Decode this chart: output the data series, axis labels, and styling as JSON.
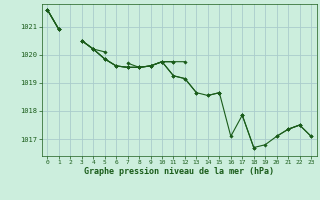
{
  "title": "Graphe pression niveau de la mer (hPa)",
  "background_color": "#cceedd",
  "grid_color": "#aacccc",
  "line_color": "#1a5c1a",
  "marker_color": "#1a5c1a",
  "xlim": [
    -0.5,
    23.5
  ],
  "ylim": [
    1016.4,
    1021.8
  ],
  "yticks": [
    1017,
    1018,
    1019,
    1020,
    1021
  ],
  "xticks": [
    0,
    1,
    2,
    3,
    4,
    5,
    6,
    7,
    8,
    9,
    10,
    11,
    12,
    13,
    14,
    15,
    16,
    17,
    18,
    19,
    20,
    21,
    22,
    23
  ],
  "series": [
    [
      1021.6,
      1020.9,
      null,
      1020.5,
      1020.2,
      1020.1,
      null,
      1019.7,
      1019.55,
      1019.6,
      1019.75,
      1019.75,
      null,
      null,
      null,
      1018.65,
      null,
      1017.85,
      1016.7,
      null,
      null,
      1017.35,
      1017.5,
      null
    ],
    [
      1021.6,
      1020.9,
      null,
      1020.5,
      1020.2,
      1019.85,
      1019.6,
      1019.55,
      1019.55,
      1019.6,
      1019.75,
      1019.25,
      1019.15,
      1018.65,
      null,
      1018.65,
      null,
      null,
      null,
      null,
      null,
      null,
      null,
      null
    ],
    [
      1021.6,
      1020.9,
      null,
      1020.5,
      1020.2,
      1019.85,
      1019.6,
      1019.55,
      1019.55,
      1019.6,
      1019.75,
      1019.25,
      1019.15,
      1018.65,
      1018.55,
      1018.65,
      1017.1,
      1017.85,
      1016.7,
      1016.8,
      1017.1,
      1017.35,
      1017.5,
      1017.1
    ],
    [
      1021.6,
      1020.9,
      null,
      1020.5,
      1020.2,
      1019.85,
      1019.6,
      1019.55,
      1019.55,
      1019.6,
      1019.75,
      1019.75,
      1019.75,
      null,
      1018.55,
      1018.65,
      null,
      1017.85,
      null,
      null,
      1017.1,
      1017.35,
      1017.5,
      1017.1
    ]
  ]
}
